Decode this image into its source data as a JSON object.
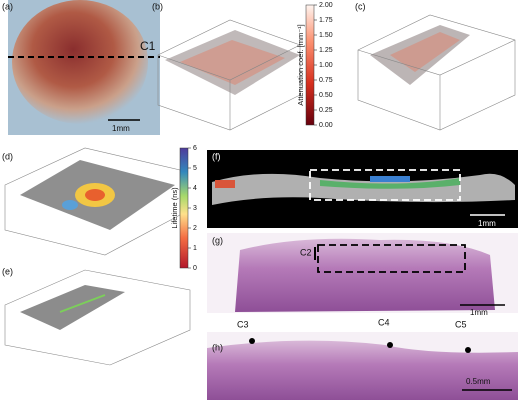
{
  "panel_labels": [
    "(a)",
    "(b)",
    "(c)",
    "(d)",
    "(e)",
    "(f)",
    "(g)",
    "(h)"
  ],
  "annotations": {
    "c1": "C1",
    "c2": "C2",
    "c3": "C3",
    "c4": "C4",
    "c5": "C5"
  },
  "scale_bars": {
    "a": "1mm",
    "f": "1mm",
    "g": "1mm",
    "h": "0.5mm"
  },
  "colorbars": [
    {
      "label": "Attenuation coef. [mm⁻¹]",
      "lim": [
        0,
        2
      ],
      "ticks": [
        {
          "value": 0,
          "label": "0.00"
        },
        {
          "value": 0.25,
          "label": "0.25"
        },
        {
          "value": 0.5,
          "label": "0.50"
        },
        {
          "value": 0.75,
          "label": "0.75"
        },
        {
          "value": 1,
          "label": "1.00"
        },
        {
          "value": 1.25,
          "label": "1.25"
        },
        {
          "value": 1.5,
          "label": "1.50"
        },
        {
          "value": 1.75,
          "label": "1.75"
        },
        {
          "value": 2,
          "label": "2.00"
        }
      ]
    },
    {
      "label": "Lifetime (ns)",
      "lim": [
        0,
        6
      ],
      "ticks": [
        0,
        1,
        2,
        3,
        4,
        5,
        6
      ]
    }
  ]
}
